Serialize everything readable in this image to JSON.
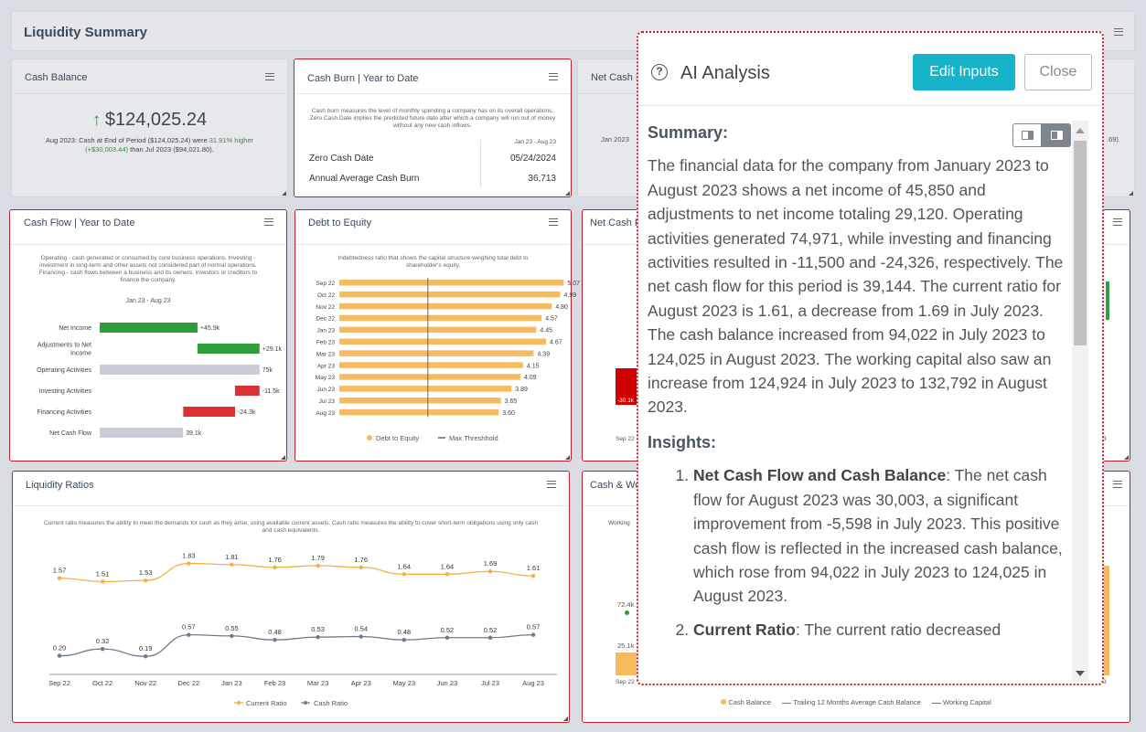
{
  "header": {
    "title": "Liquidity Summary"
  },
  "cash_balance": {
    "title": "Cash Balance",
    "value": "$124,025.24",
    "line1": "Aug 2023: Cash at End of Period ($124,025.24) were",
    "pct": "31.91% higher",
    "diff": "(+$30,003.44)",
    "line2": "than Jul 2023 ($94,021.80)."
  },
  "cash_burn": {
    "title": "Cash Burn | Year to Date",
    "desc": "Cash burn measures the level of monthly spending a company has on its overall operations. Zero Cash Date implies the predicted future date after which a company will run out of money without any new cash inflows.",
    "period": "Jan 23 - Aug 23",
    "rows": [
      {
        "label": "Zero Cash Date",
        "value": "05/24/2024"
      },
      {
        "label": "Annual Average Cash Burn",
        "value": "36,713"
      }
    ]
  },
  "net_cash_panel": {
    "title": "Net Cash F",
    "period": "Jan 2023",
    "partial": ".69)."
  },
  "cash_flow": {
    "title": "Cash Flow | Year to Date",
    "desc": "Operating - cash generated or consumed by core business operations. Investing - investment in long-term and other assets not considered part of normal operations. Financing - cash flows between a business and its owners, investors or creditors to finance the company.",
    "period": "Jan 23 - Aug 23",
    "chart_data": {
      "type": "bar",
      "categories": [
        "Net Income",
        "Adjustments to Net Income",
        "Operating Activities",
        "Investing Activities",
        "Financing Activities",
        "Net Cash Flow"
      ],
      "values": [
        45.9,
        29.1,
        75,
        -11.5,
        -24.3,
        39.1
      ],
      "data_labels": [
        "+45.9k",
        "+29.1k",
        "75k",
        "-11.5k",
        "-24.3k",
        "39.1k"
      ]
    }
  },
  "debt_equity": {
    "title": "Debt to Equity",
    "desc": "Indebtedness ratio that shows the capital structure weighing total debt to shareholder's equity.",
    "chart_data": {
      "type": "bar",
      "categories": [
        "Sep 22",
        "Oct 22",
        "Nov 22",
        "Dec 22",
        "Jan 23",
        "Feb 23",
        "Mar 23",
        "Apr 23",
        "May 23",
        "Jun 23",
        "Jul 23",
        "Aug 23"
      ],
      "values": [
        5.07,
        4.99,
        4.8,
        4.57,
        4.45,
        4.67,
        4.39,
        4.15,
        4.09,
        3.89,
        3.65,
        3.6
      ],
      "data_labels": [
        "5.07",
        "4.99",
        "4.80",
        "4.57",
        "4.45",
        "4.67",
        "4.39",
        "4.15",
        "4.09",
        "3.89",
        "3.65",
        "3.60"
      ],
      "max_threshold": 2,
      "legend": [
        "Debt to Equity",
        "Max Threshhold"
      ],
      "colors": {
        "bar": "#f7bb5f",
        "threshold": "#5a6a86"
      }
    }
  },
  "net_cash_flow2": {
    "title": "Net Cash F",
    "left_label": "-30.1k",
    "x_label": "Sep 22",
    "right_label": "3"
  },
  "liquidity": {
    "title": "Liquidity Ratios",
    "desc": "Current ratio measures the ability to meet the demands for cash as they arise, using available current assets. Cash ratio measures the ability to cover short-term obligations using only cash and cash equivalents.",
    "chart_data": {
      "type": "line",
      "categories": [
        "Sep 22",
        "Oct 22",
        "Nov 22",
        "Dec 22",
        "Jan 23",
        "Feb 23",
        "Mar 23",
        "Apr 23",
        "May 23",
        "Jun 23",
        "Jul 23",
        "Aug 23"
      ],
      "series": [
        {
          "name": "Current Ratio",
          "values": [
            1.57,
            1.51,
            1.53,
            1.83,
            1.81,
            1.76,
            1.79,
            1.76,
            1.64,
            1.64,
            1.69,
            1.61
          ],
          "labels": [
            "1.57",
            "1.51",
            "1.53",
            "1.83",
            "1.81",
            "1.76",
            "1.79",
            "1.76",
            "1.64",
            "1.64",
            "1.69",
            "1.61"
          ],
          "color": "#f5b041"
        },
        {
          "name": "Cash Ratio",
          "values": [
            0.2,
            0.32,
            0.19,
            0.57,
            0.55,
            0.48,
            0.53,
            0.54,
            0.48,
            0.52,
            0.52,
            0.57
          ],
          "labels": [
            "0.20",
            "0.32",
            "0.19",
            "0.57",
            "0.55",
            "0.48",
            "0.53",
            "0.54",
            "0.48",
            "0.52",
            "0.52",
            "0.57"
          ],
          "color": "#6b7b8c"
        }
      ]
    }
  },
  "cash_wc": {
    "title": "Cash & Wo",
    "desc_partial": "Working",
    "label1": "72.4k",
    "label2": "25.1k",
    "x_label": "Sep 22",
    "right_label": "3",
    "legend": [
      "Cash Balance",
      "Trailing 12 Months Average Cash Balance",
      "Working Capital"
    ]
  },
  "ai": {
    "title": "AI Analysis",
    "edit_label": "Edit Inputs",
    "close_label": "Close",
    "summary_heading": "Summary:",
    "summary": "The financial data for the company from January 2023 to August 2023 shows a net income of 45,850 and adjustments to net income totaling 29,120. Operating activities generated 74,971, while investing and financing activities resulted in -11,500 and -24,326, respectively. The net cash flow for this period is 39,144. The current ratio for August 2023 is 1.61, a decrease from 1.69 in July 2023. The cash balance increased from 94,022 in July 2023 to 124,025 in August 2023. The working capital also saw an increase from 124,924 in July 2023 to 132,792 in August 2023.",
    "insights_heading": "Insights:",
    "insights": [
      {
        "title": "Net Cash Flow and Cash Balance",
        "text": ": The net cash flow for August 2023 was 30,003, a significant improvement from -5,598 in July 2023. This positive cash flow is reflected in the increased cash balance, which rose from 94,022 in July 2023 to 124,025 in August 2023."
      },
      {
        "title": "Current Ratio",
        "text": ": The current ratio decreased"
      }
    ]
  }
}
